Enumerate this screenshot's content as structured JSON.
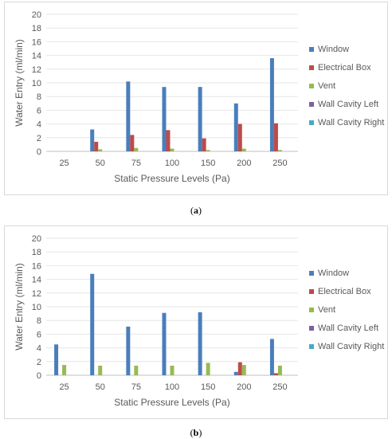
{
  "figure": {
    "captions": [
      {
        "open": "(",
        "letter": "a",
        "close": ")"
      },
      {
        "open": "(",
        "letter": "b",
        "close": ")"
      }
    ]
  },
  "colors": {
    "window": "#4a7ebb",
    "electrical_box": "#be4b48",
    "vent": "#98b954",
    "wall_cavity_left": "#7d60a0",
    "wall_cavity_right": "#46aac5",
    "grid": "#e6e6e6",
    "axis": "#bfbfbf",
    "text": "#595959"
  },
  "chart_data": [
    {
      "type": "bar",
      "panel": "a",
      "xlabel": "Static Pressure Levels (Pa)",
      "ylabel": "Water Entry (ml/min)",
      "ylim": [
        0,
        20
      ],
      "yticks": [
        0,
        2,
        4,
        6,
        8,
        10,
        12,
        14,
        16,
        18,
        20
      ],
      "grid": true,
      "legend": "right",
      "categories": [
        "25",
        "50",
        "75",
        "100",
        "150",
        "200",
        "250"
      ],
      "series": [
        {
          "name": "Window",
          "values": [
            0,
            3.2,
            10.2,
            9.4,
            9.4,
            7.0,
            13.6
          ]
        },
        {
          "name": "Electrical Box",
          "values": [
            0,
            1.4,
            2.4,
            3.1,
            1.9,
            4.0,
            4.1
          ]
        },
        {
          "name": "Vent",
          "values": [
            0,
            0.3,
            0.5,
            0.4,
            0.2,
            0.4,
            0.2
          ]
        },
        {
          "name": "Wall Cavity Left",
          "values": [
            0,
            0,
            0,
            0,
            0,
            0,
            0
          ]
        },
        {
          "name": "Wall Cavity Right",
          "values": [
            0,
            0,
            0,
            0,
            0,
            0,
            0
          ]
        }
      ]
    },
    {
      "type": "bar",
      "panel": "b",
      "xlabel": "Static Pressure Levels (Pa)",
      "ylabel": "Water Entry (ml/min)",
      "ylim": [
        0,
        20
      ],
      "yticks": [
        0,
        2,
        4,
        6,
        8,
        10,
        12,
        14,
        16,
        18,
        20
      ],
      "grid": true,
      "legend": "right",
      "categories": [
        "25",
        "50",
        "75",
        "100",
        "150",
        "200",
        "250"
      ],
      "series": [
        {
          "name": "Window",
          "values": [
            4.5,
            14.8,
            7.1,
            9.1,
            9.2,
            0.5,
            5.3
          ]
        },
        {
          "name": "Electrical Box",
          "values": [
            0,
            0,
            0,
            0,
            0,
            1.9,
            0.3
          ]
        },
        {
          "name": "Vent",
          "values": [
            1.5,
            1.4,
            1.4,
            1.4,
            1.8,
            1.5,
            1.4
          ]
        },
        {
          "name": "Wall Cavity Left",
          "values": [
            0,
            0,
            0,
            0,
            0,
            0,
            0
          ]
        },
        {
          "name": "Wall Cavity Right",
          "values": [
            0,
            0,
            0,
            0,
            0,
            0,
            0
          ]
        }
      ]
    }
  ]
}
